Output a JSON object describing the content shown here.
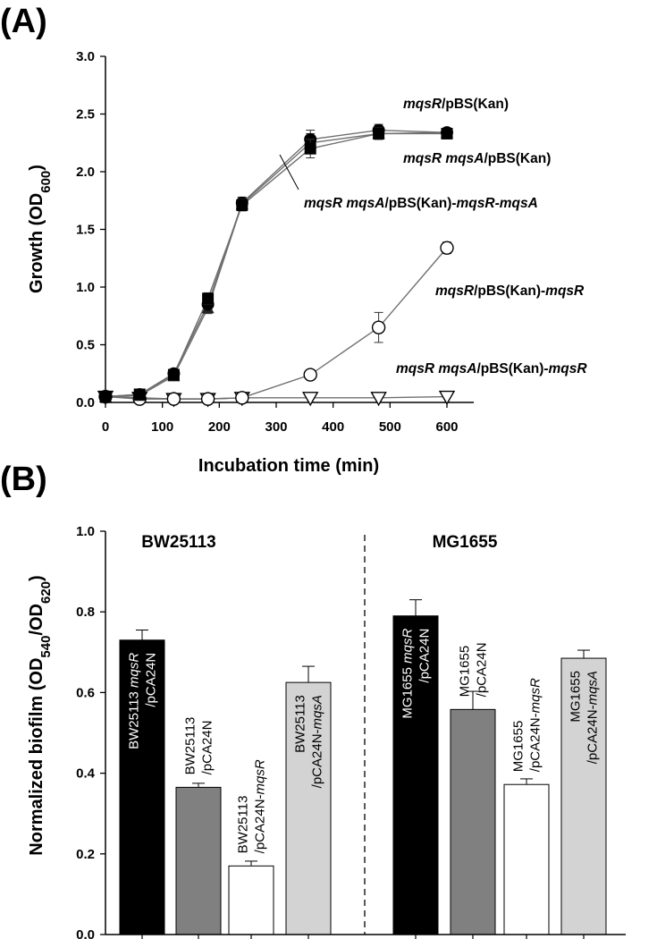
{
  "panel_a_label": "(A)",
  "panel_b_label": "(B)",
  "chart_data": [
    {
      "type": "line",
      "panel": "A",
      "xlabel": "Incubation time (min)",
      "ylabel": {
        "main": "Growth (OD",
        "sub": "600",
        "close": ")"
      },
      "xlim": [
        0,
        600
      ],
      "ylim": [
        0,
        3.0
      ],
      "xticks": [
        0,
        100,
        200,
        300,
        400,
        500,
        600
      ],
      "yticks": [
        "0.0",
        "0.5",
        "1.0",
        "1.5",
        "2.0",
        "2.5",
        "3.0"
      ],
      "series": [
        {
          "name": "mqsR/pBS(Kan)",
          "label_parts": [
            {
              "t": "mqsR",
              "i": true
            },
            {
              "t": "/pBS(Kan)",
              "i": false
            }
          ],
          "marker": "filled-circle",
          "x": [
            0,
            60,
            120,
            180,
            240,
            360,
            480,
            600
          ],
          "y": [
            0.05,
            0.07,
            0.25,
            0.85,
            1.73,
            2.28,
            2.36,
            2.34
          ],
          "err": [
            0.02,
            0.02,
            0.03,
            0.05,
            0.05,
            0.08,
            0.05,
            0.03
          ]
        },
        {
          "name": "mqsR mqsA/pBS(Kan)",
          "label_parts": [
            {
              "t": "mqsR mqsA",
              "i": true
            },
            {
              "t": "/pBS(Kan)",
              "i": false
            }
          ],
          "marker": "filled-square",
          "x": [
            0,
            60,
            120,
            180,
            240,
            360,
            480,
            600
          ],
          "y": [
            0.05,
            0.07,
            0.24,
            0.9,
            1.71,
            2.2,
            2.33,
            2.33
          ],
          "err": [
            0.02,
            0.02,
            0.03,
            0.05,
            0.05,
            0.08,
            0.05,
            0.03
          ]
        },
        {
          "name": "mqsR mqsA/pBS(Kan)-mqsR-mqsA",
          "label_parts": [
            {
              "t": "mqsR mqsA",
              "i": true
            },
            {
              "t": "/pBS(Kan)-",
              "i": false
            },
            {
              "t": "mqsR-mqsA",
              "i": true
            }
          ],
          "marker": "filled-triangle",
          "x": [
            0,
            60,
            120,
            180,
            240,
            360,
            480,
            600
          ],
          "y": [
            0.05,
            0.06,
            0.23,
            0.82,
            1.72,
            2.25,
            2.33,
            2.34
          ],
          "err": [
            0.02,
            0.02,
            0.03,
            0.05,
            0.05,
            0.08,
            0.05,
            0.03
          ]
        },
        {
          "name": "mqsR/pBS(Kan)-mqsR",
          "label_parts": [
            {
              "t": "mqsR",
              "i": true
            },
            {
              "t": "/pBS(Kan)-",
              "i": false
            },
            {
              "t": "mqsR",
              "i": true
            }
          ],
          "marker": "open-circle",
          "x": [
            0,
            60,
            120,
            180,
            240,
            360,
            480,
            600
          ],
          "y": [
            0.05,
            0.03,
            0.03,
            0.03,
            0.04,
            0.24,
            0.65,
            1.34
          ],
          "err": [
            0.0,
            0.0,
            0.0,
            0.0,
            0.0,
            0.02,
            0.13,
            0.05
          ]
        },
        {
          "name": "mqsR mqsA/pBS(Kan)-mqsR",
          "label_parts": [
            {
              "t": "mqsR mqsA",
              "i": true
            },
            {
              "t": "/pBS(Kan)-",
              "i": false
            },
            {
              "t": "mqsR",
              "i": true
            }
          ],
          "marker": "open-triangle-down",
          "x": [
            0,
            60,
            120,
            180,
            240,
            360,
            480,
            600
          ],
          "y": [
            0.05,
            0.04,
            0.03,
            0.03,
            0.04,
            0.04,
            0.04,
            0.05
          ],
          "err": [
            0,
            0,
            0,
            0,
            0,
            0,
            0,
            0
          ]
        }
      ]
    },
    {
      "type": "bar",
      "panel": "B",
      "ylabel": {
        "main": "Normalized biofilm (OD",
        "sub1": "540",
        "mid": "/OD",
        "sub2": "620",
        "close": ")"
      },
      "ylim": [
        0,
        1.0
      ],
      "yticks": [
        "0.0",
        "0.2",
        "0.4",
        "0.6",
        "0.8",
        "1.0"
      ],
      "groups": [
        "BW25113",
        "MG1655"
      ],
      "bars": [
        {
          "group": 0,
          "value": 0.73,
          "err": 0.025,
          "fill": "#000000",
          "text_color": "#ffffff",
          "inside": true,
          "lines": [
            [
              {
                "t": "BW25113 ",
                "i": false
              },
              {
                "t": "mqsR",
                "i": true
              }
            ],
            [
              {
                "t": "/pCA24N",
                "i": false
              }
            ]
          ]
        },
        {
          "group": 0,
          "value": 0.365,
          "err": 0.01,
          "fill": "#808080",
          "text_color": "#000000",
          "inside": false,
          "lines": [
            [
              {
                "t": "BW25113",
                "i": false
              }
            ],
            [
              {
                "t": "/pCA24N",
                "i": false
              }
            ]
          ]
        },
        {
          "group": 0,
          "value": 0.17,
          "err": 0.012,
          "fill": "#ffffff",
          "text_color": "#000000",
          "inside": false,
          "lines": [
            [
              {
                "t": "BW25113",
                "i": false
              }
            ],
            [
              {
                "t": "/pCA24N-",
                "i": false
              },
              {
                "t": "mqsR",
                "i": true
              }
            ]
          ]
        },
        {
          "group": 0,
          "value": 0.625,
          "err": 0.04,
          "fill": "#d3d3d3",
          "text_color": "#000000",
          "inside": true,
          "lines": [
            [
              {
                "t": "BW25113",
                "i": false
              }
            ],
            [
              {
                "t": "/pCA24N-",
                "i": false
              },
              {
                "t": "mqsA",
                "i": true
              }
            ]
          ]
        },
        {
          "group": 1,
          "value": 0.79,
          "err": 0.04,
          "fill": "#000000",
          "text_color": "#ffffff",
          "inside": true,
          "lines": [
            [
              {
                "t": "MG1655 ",
                "i": false
              },
              {
                "t": "mqsR",
                "i": true
              }
            ],
            [
              {
                "t": "/pCA24N",
                "i": false
              }
            ]
          ]
        },
        {
          "group": 1,
          "value": 0.558,
          "err": 0.045,
          "fill": "#808080",
          "text_color": "#000000",
          "inside": false,
          "lines": [
            [
              {
                "t": "MG1655",
                "i": false
              }
            ],
            [
              {
                "t": "/pCA24N",
                "i": false
              }
            ]
          ]
        },
        {
          "group": 1,
          "value": 0.372,
          "err": 0.014,
          "fill": "#ffffff",
          "text_color": "#000000",
          "inside": false,
          "lines": [
            [
              {
                "t": "MG1655",
                "i": false
              }
            ],
            [
              {
                "t": "/pCA24N-",
                "i": false
              },
              {
                "t": "mqsR",
                "i": true
              }
            ]
          ]
        },
        {
          "group": 1,
          "value": 0.685,
          "err": 0.02,
          "fill": "#d3d3d3",
          "text_color": "#000000",
          "inside": true,
          "lines": [
            [
              {
                "t": "MG1655",
                "i": false
              }
            ],
            [
              {
                "t": "/pCA24N-",
                "i": false
              },
              {
                "t": "mqsA",
                "i": true
              }
            ]
          ]
        }
      ]
    }
  ]
}
